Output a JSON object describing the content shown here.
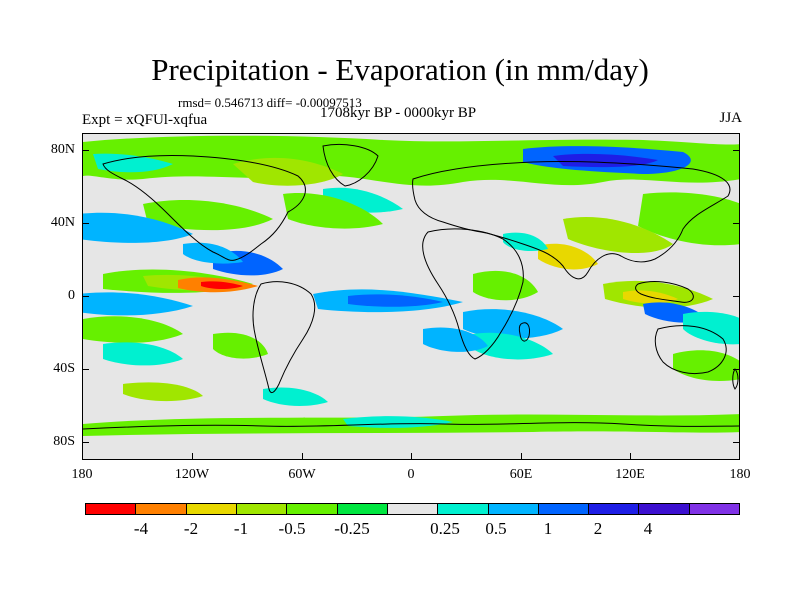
{
  "figure": {
    "title": "Precipitation - Evaporation (in mm/day)",
    "stats": "rmsd= 0.546713 diff= -0.00097513",
    "experiment": "Expt = xQFUl-xqfua",
    "period": "1708kyr BP - 0000kyr BP",
    "season": "JJA"
  },
  "axes": {
    "y_labels": [
      "80N",
      "40N",
      "0",
      "40S",
      "80S"
    ],
    "x_labels": [
      "180",
      "120W",
      "60W",
      "0",
      "60E",
      "120E",
      "180"
    ]
  },
  "colorbar": {
    "colors": [
      "#ff0000",
      "#ff8000",
      "#e8d800",
      "#a0e600",
      "#66f000",
      "#00e640",
      "#e6e6e6",
      "#00f0d0",
      "#00b4ff",
      "#0064ff",
      "#1e1ee6",
      "#3c10d0",
      "#8032e6"
    ],
    "labels": [
      "-4",
      "-2",
      "-1",
      "-0.5",
      "-0.25",
      "0.25",
      "0.5",
      "1",
      "2",
      "4"
    ]
  }
}
